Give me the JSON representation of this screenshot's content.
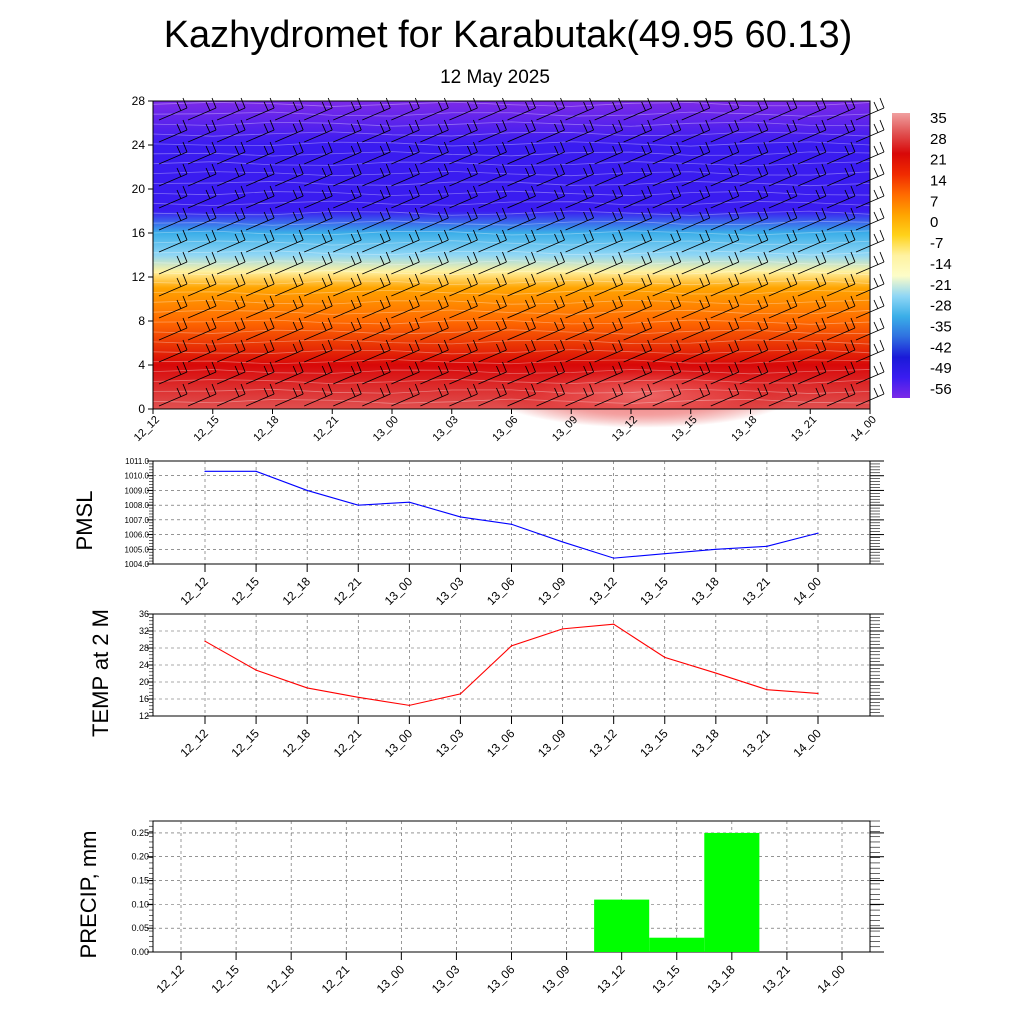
{
  "title": "Kazhydromet for Karabutak(49.95 60.13)",
  "subtitle": "12 May 2025",
  "time_labels": [
    "12_12",
    "12_15",
    "12_18",
    "12_21",
    "13_00",
    "13_03",
    "13_06",
    "13_09",
    "13_12",
    "13_15",
    "13_18",
    "13_21",
    "14_00"
  ],
  "chart_data": [
    {
      "type": "heatmap",
      "description_key": "vertical-section",
      "x": [
        "12_12",
        "12_15",
        "12_18",
        "12_21",
        "13_00",
        "13_03",
        "13_06",
        "13_09",
        "13_12",
        "13_15",
        "13_18",
        "13_21",
        "14_00"
      ],
      "y_ticks": [
        0,
        4,
        8,
        12,
        16,
        20,
        24,
        28
      ],
      "ylim": [
        0,
        28
      ],
      "colorbar_labels": [
        "35",
        "28",
        "21",
        "14",
        "7",
        "0",
        "-7",
        "-14",
        "-21",
        "-28",
        "-35",
        "-42",
        "-49",
        "-56"
      ],
      "colorbar_values": [
        35,
        28,
        21,
        14,
        7,
        0,
        -7,
        -14,
        -21,
        -28,
        -35,
        -42,
        -49,
        -56
      ],
      "color_scale": [
        "#7c2ae8",
        "#3a1cf0",
        "#1a1ad8",
        "#2f6fe0",
        "#3aaee8",
        "#8fd6f5",
        "#fdfdc8",
        "#fff2a0",
        "#ffd21a",
        "#ffa400",
        "#ff6a00",
        "#f02a00",
        "#d80808",
        "#e05050",
        "#f0a0a0"
      ],
      "temperature_profile": [
        {
          "height": 0,
          "value": 30
        },
        {
          "height": 4,
          "value": 22
        },
        {
          "height": 8,
          "value": 10
        },
        {
          "height": 11,
          "value": 2
        },
        {
          "height": 12.5,
          "value": -10
        },
        {
          "height": 14,
          "value": -22
        },
        {
          "height": 16,
          "value": -32
        },
        {
          "height": 18,
          "value": -50
        },
        {
          "height": 20,
          "value": -53
        },
        {
          "height": 24,
          "value": -56
        },
        {
          "height": 28,
          "value": -60
        }
      ],
      "wind_barbs": true
    },
    {
      "type": "line",
      "ylabel": "PMSL",
      "x": [
        "12_12",
        "12_15",
        "12_18",
        "12_21",
        "13_00",
        "13_03",
        "13_06",
        "13_09",
        "13_12",
        "13_15",
        "13_18",
        "13_21",
        "14_00"
      ],
      "y_ticks": [
        "1004.0",
        "1005.0",
        "1006.0",
        "1007.0",
        "1008.0",
        "1009.0",
        "1010.0",
        "1011.0"
      ],
      "ylim": [
        1004,
        1011
      ],
      "series": [
        {
          "color": "#0000ff",
          "values": [
            1010.3,
            1010.3,
            1009.0,
            1008.0,
            1008.2,
            1007.2,
            1006.7,
            1005.5,
            1004.4,
            1004.7,
            1005.0,
            1005.2,
            1006.1
          ]
        }
      ],
      "grid": true
    },
    {
      "type": "line",
      "ylabel": "TEMP at 2 M",
      "x": [
        "12_12",
        "12_15",
        "12_18",
        "12_21",
        "13_00",
        "13_03",
        "13_06",
        "13_09",
        "13_12",
        "13_15",
        "13_18",
        "13_21",
        "14_00"
      ],
      "y_ticks": [
        "12",
        "16",
        "20",
        "24",
        "28",
        "32",
        "36"
      ],
      "ylim": [
        12,
        36
      ],
      "series": [
        {
          "color": "#ff0000",
          "values": [
            29.6,
            22.8,
            18.6,
            16.4,
            14.5,
            17.2,
            28.5,
            32.5,
            33.6,
            25.8,
            22.1,
            18.2,
            17.3
          ]
        }
      ],
      "grid": true
    },
    {
      "type": "bar",
      "ylabel": "PRECIP, mm",
      "x": [
        "12_12",
        "12_15",
        "12_18",
        "12_21",
        "13_00",
        "13_03",
        "13_06",
        "13_09",
        "13_12",
        "13_15",
        "13_18",
        "13_21",
        "14_00"
      ],
      "y_ticks": [
        "0.00",
        "0.05",
        "0.10",
        "0.15",
        "0.20",
        "0.25"
      ],
      "ylim": [
        0,
        0.275
      ],
      "values": [
        0,
        0,
        0,
        0,
        0,
        0,
        0,
        0,
        0.11,
        0.03,
        0.25,
        0,
        0
      ],
      "bar_color": "#00ff00",
      "grid": true
    }
  ]
}
